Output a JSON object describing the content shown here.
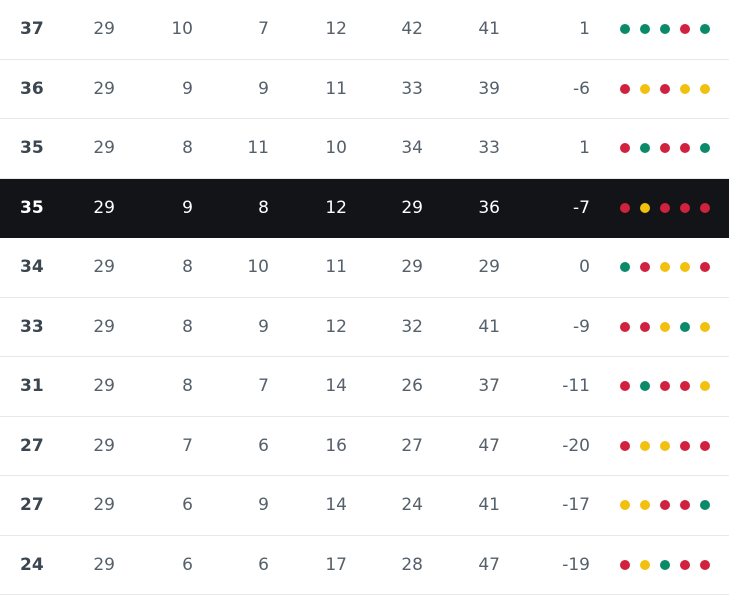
{
  "colors": {
    "win": "#0a8a68",
    "loss": "#d0213e",
    "draw": "#f2c00f",
    "highlight_row": "#121417"
  },
  "rows": [
    {
      "points": "37",
      "played": "29",
      "won": "10",
      "drawn": "7",
      "lost": "12",
      "gf": "42",
      "ga": "41",
      "gd": "1",
      "form": [
        "W",
        "W",
        "W",
        "L",
        "W"
      ]
    },
    {
      "points": "36",
      "played": "29",
      "won": "9",
      "drawn": "9",
      "lost": "11",
      "gf": "33",
      "ga": "39",
      "gd": "-6",
      "form": [
        "L",
        "D",
        "L",
        "D",
        "D"
      ]
    },
    {
      "points": "35",
      "played": "29",
      "won": "8",
      "drawn": "11",
      "lost": "10",
      "gf": "34",
      "ga": "33",
      "gd": "1",
      "form": [
        "L",
        "W",
        "L",
        "L",
        "W"
      ]
    },
    {
      "points": "35",
      "played": "29",
      "won": "9",
      "drawn": "8",
      "lost": "12",
      "gf": "29",
      "ga": "36",
      "gd": "-7",
      "form": [
        "L",
        "D",
        "L",
        "L",
        "L"
      ],
      "highlight": true
    },
    {
      "points": "34",
      "played": "29",
      "won": "8",
      "drawn": "10",
      "lost": "11",
      "gf": "29",
      "ga": "29",
      "gd": "0",
      "form": [
        "W",
        "L",
        "D",
        "D",
        "L"
      ]
    },
    {
      "points": "33",
      "played": "29",
      "won": "8",
      "drawn": "9",
      "lost": "12",
      "gf": "32",
      "ga": "41",
      "gd": "-9",
      "form": [
        "L",
        "L",
        "D",
        "W",
        "D"
      ]
    },
    {
      "points": "31",
      "played": "29",
      "won": "8",
      "drawn": "7",
      "lost": "14",
      "gf": "26",
      "ga": "37",
      "gd": "-11",
      "form": [
        "L",
        "W",
        "L",
        "L",
        "D"
      ]
    },
    {
      "points": "27",
      "played": "29",
      "won": "7",
      "drawn": "6",
      "lost": "16",
      "gf": "27",
      "ga": "47",
      "gd": "-20",
      "form": [
        "L",
        "D",
        "D",
        "L",
        "L"
      ]
    },
    {
      "points": "27",
      "played": "29",
      "won": "6",
      "drawn": "9",
      "lost": "14",
      "gf": "24",
      "ga": "41",
      "gd": "-17",
      "form": [
        "D",
        "D",
        "L",
        "L",
        "W"
      ]
    },
    {
      "points": "24",
      "played": "29",
      "won": "6",
      "drawn": "6",
      "lost": "17",
      "gf": "28",
      "ga": "47",
      "gd": "-19",
      "form": [
        "L",
        "D",
        "W",
        "L",
        "L"
      ]
    }
  ]
}
